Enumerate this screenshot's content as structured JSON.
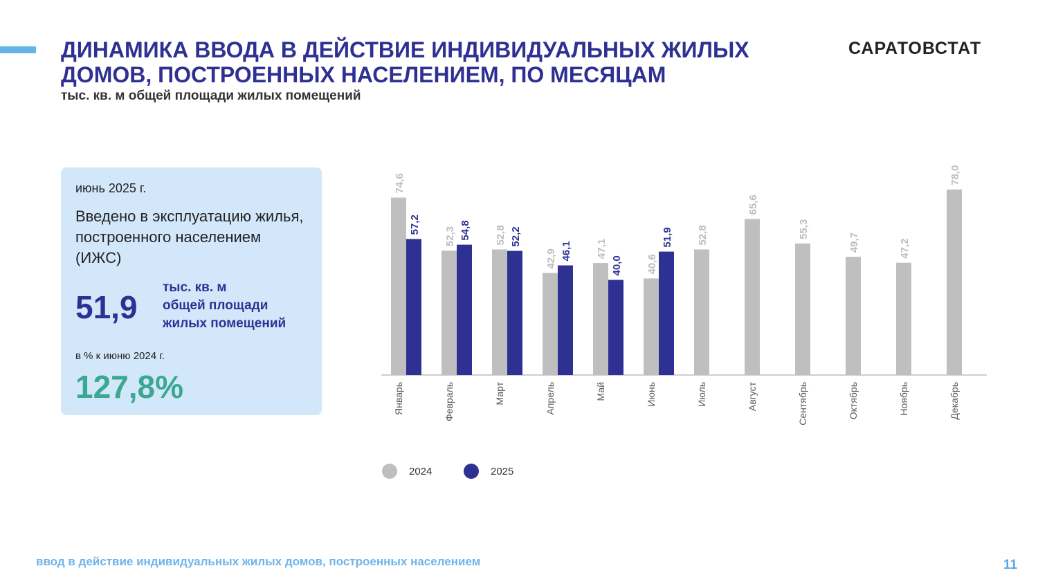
{
  "header": {
    "title_line1": "ДИНАМИКА ВВОДА В ДЕЙСТВИЕ ИНДИВИДУАЛЬНЫХ ЖИЛЫХ",
    "title_line2": "ДОМОВ, ПОСТРОЕННЫХ НАСЕЛЕНИЕМ, ПО МЕСЯЦАМ",
    "subtitle": "тыс. кв. м общей площади жилых помещений",
    "brand": "САРАТОВСТАТ"
  },
  "card": {
    "period": "июнь 2025 г.",
    "description": "Введено в эксплуатацию жилья, построенного населением (ИЖС)",
    "value": "51,9",
    "unit_line1": "тыс. кв. м",
    "unit_line2": "общей площади",
    "unit_line3": "жилых помещений",
    "comparison_label": "в % к  июню 2024 г.",
    "percent": "127,8%"
  },
  "footer": {
    "text": "ввод в действие индивидуальных жилых домов, построенных населением",
    "page_number": "11"
  },
  "colors": {
    "accent": "#66b3ea",
    "title": "#2e3192",
    "series_2024": "#bfbfbf",
    "series_2025": "#2e3192",
    "percent": "#3aa893"
  },
  "chart_data": {
    "type": "bar",
    "categories": [
      "Январь",
      "Февраль",
      "Март",
      "Апрель",
      "Май",
      "Июнь",
      "Июль",
      "Август",
      "Сентябрь",
      "Октябрь",
      "Ноябрь",
      "Декабрь"
    ],
    "series": [
      {
        "name": "2024",
        "color": "#bfbfbf",
        "values": [
          74.6,
          52.3,
          52.8,
          42.9,
          47.1,
          40.6,
          52.8,
          65.6,
          55.3,
          49.7,
          47.2,
          78.0
        ],
        "labels": [
          "74,6",
          "52,3",
          "52,8",
          "42,9",
          "47,1",
          "40,6",
          "52,8",
          "65,6",
          "55,3",
          "49,7",
          "47,2",
          "78,0"
        ]
      },
      {
        "name": "2025",
        "color": "#2e3192",
        "values": [
          57.2,
          54.8,
          52.2,
          46.1,
          40.0,
          51.9,
          null,
          null,
          null,
          null,
          null,
          null
        ],
        "labels": [
          "57,2",
          "54,8",
          "52,2",
          "46,1",
          "40,0",
          "51,9",
          "",
          "",
          "",
          "",
          "",
          ""
        ]
      }
    ],
    "title": "",
    "xlabel": "",
    "ylabel": "",
    "ylim": [
      0,
      80
    ],
    "grid": false,
    "legend": "bottom"
  }
}
